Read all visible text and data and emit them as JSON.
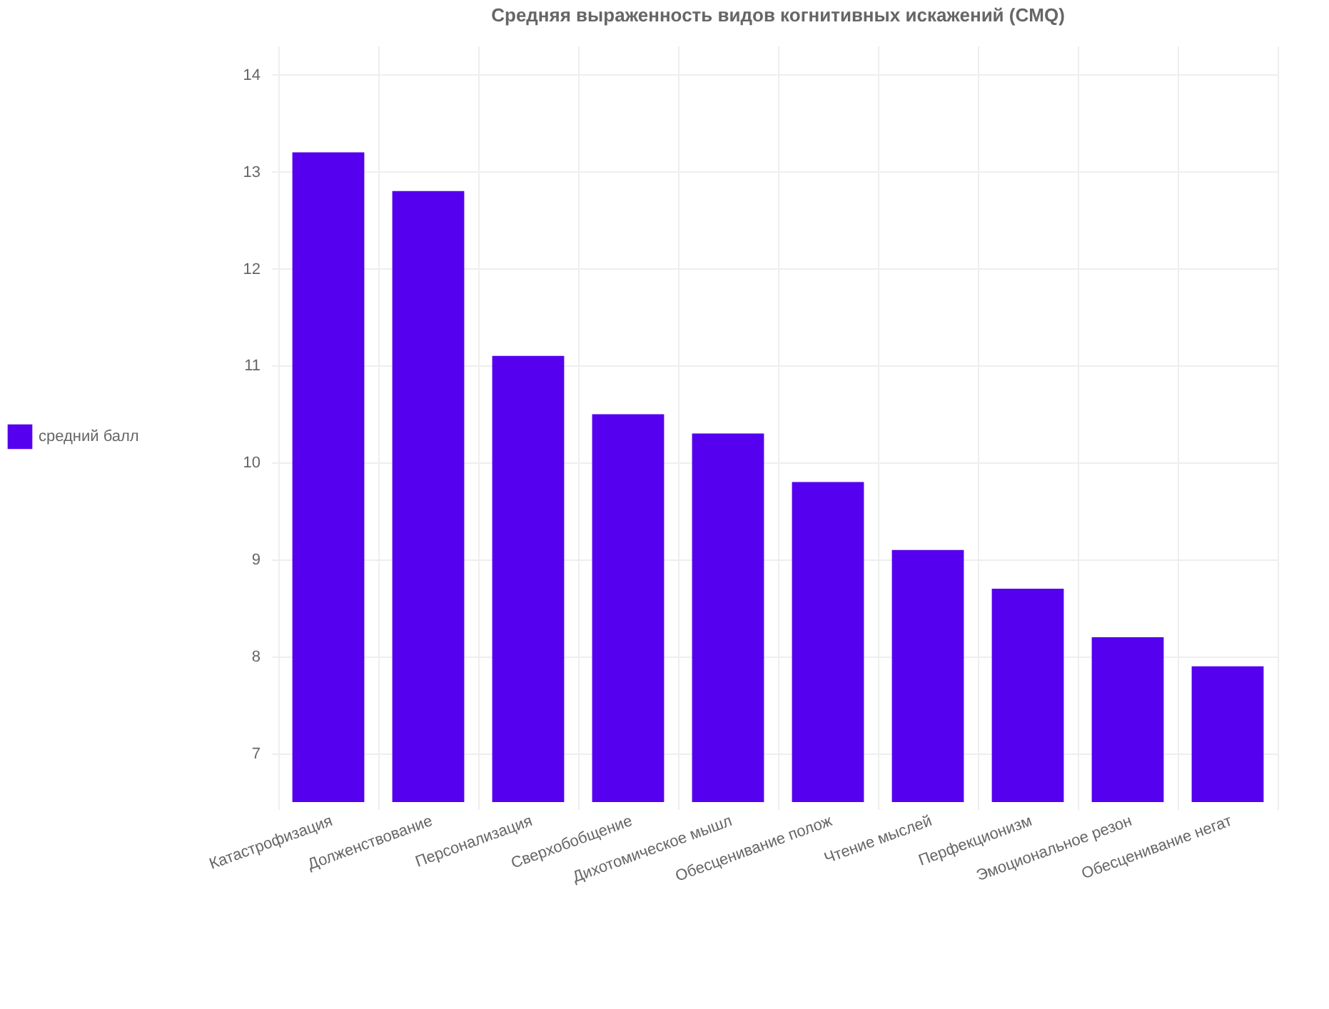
{
  "chart_data": {
    "type": "bar",
    "title": "Средняя выраженность видов когнитивных искажений (CMQ)",
    "categories": [
      "Катастрофизация",
      "Долженствование",
      "Персонализация",
      "Сверхобобщение",
      "Дихотомическое мышл",
      "Обесценивание полож",
      "Чтение мыслей",
      "Перфекционизм",
      "Эмоциональное резон",
      "Обесценивание негат"
    ],
    "series": [
      {
        "name": "средний балл",
        "color": "#5500ee",
        "values": [
          13.2,
          12.8,
          11.1,
          10.5,
          10.3,
          9.8,
          9.1,
          8.7,
          8.2,
          7.9
        ]
      }
    ],
    "ylim": [
      6.5,
      14.3
    ],
    "yticks": [
      7,
      8,
      9,
      10,
      11,
      12,
      13,
      14
    ],
    "grid": true,
    "legend": "left"
  }
}
